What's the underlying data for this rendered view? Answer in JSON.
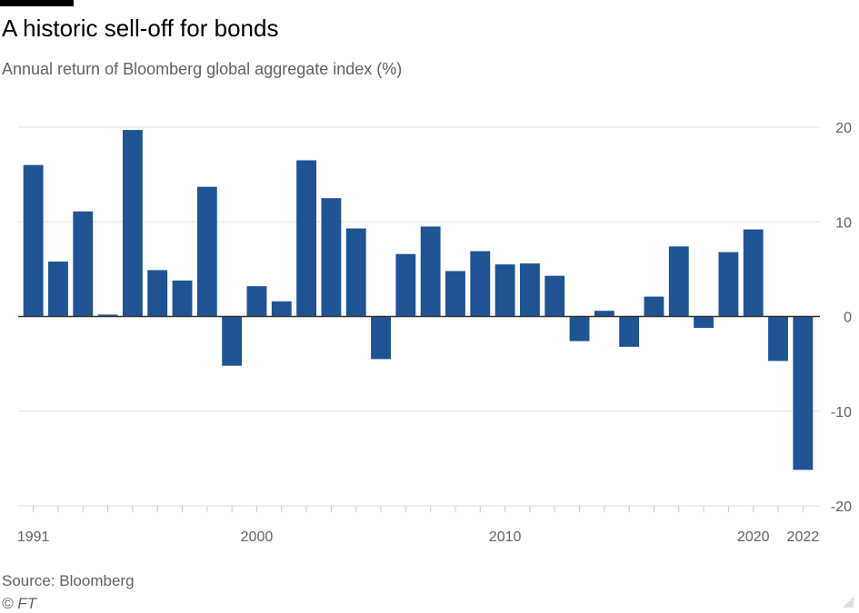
{
  "title": "A historic sell-off for bonds",
  "subtitle": "Annual return of Bloomberg global aggregate index (%)",
  "source": "Source: Bloomberg",
  "copyright": "© FT",
  "colors": {
    "bar": "#1f5394",
    "grid": "#e6e2de",
    "zero_line": "#33302e",
    "text": "#66605c"
  },
  "chart_data": {
    "type": "bar",
    "title": "A historic sell-off for bonds",
    "subtitle": "Annual return of Bloomberg global aggregate index (%)",
    "xlabel": "",
    "ylabel": "",
    "categories": [
      "1991",
      "1992",
      "1993",
      "1994",
      "1995",
      "1996",
      "1997",
      "1998",
      "1999",
      "2000",
      "2001",
      "2002",
      "2003",
      "2004",
      "2005",
      "2006",
      "2007",
      "2008",
      "2009",
      "2010",
      "2011",
      "2012",
      "2013",
      "2014",
      "2015",
      "2016",
      "2017",
      "2018",
      "2019",
      "2020",
      "2021",
      "2022"
    ],
    "values": [
      16.0,
      5.8,
      11.1,
      0.2,
      19.7,
      4.9,
      3.8,
      13.7,
      -5.2,
      3.2,
      1.6,
      16.5,
      12.5,
      9.3,
      -4.5,
      6.6,
      9.5,
      4.8,
      6.9,
      5.5,
      5.6,
      4.3,
      -2.6,
      0.6,
      -3.2,
      2.1,
      7.4,
      -1.2,
      6.8,
      9.2,
      -4.7,
      -16.2
    ],
    "ylim": [
      -20,
      20
    ],
    "yticks": [
      20,
      10,
      0,
      -10,
      -20
    ],
    "ytick_labels": [
      "20",
      "10",
      "0",
      "-10",
      "-20"
    ],
    "xtick_labels": [
      {
        "year": "1991",
        "label": "1991"
      },
      {
        "year": "2000",
        "label": "2000"
      },
      {
        "year": "2010",
        "label": "2010"
      },
      {
        "year": "2020",
        "label": "2020"
      },
      {
        "year": "2022",
        "label": "2022"
      }
    ],
    "y_axis_side": "right",
    "grid": true,
    "legend": "none"
  }
}
